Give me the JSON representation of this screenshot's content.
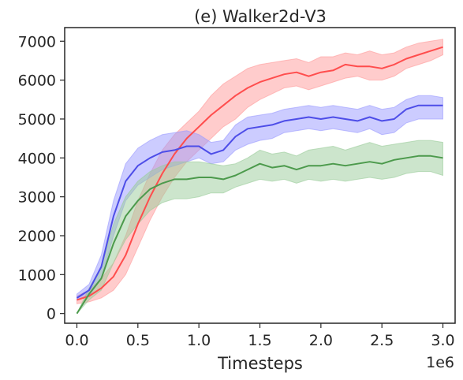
{
  "chart_data": {
    "type": "line",
    "title": "(e) Walker2d-V3",
    "xlabel": "Timesteps",
    "ylabel": "",
    "x_offset_label": "1e6",
    "xlim": [
      -0.1,
      3.1
    ],
    "ylim": [
      -250,
      7350
    ],
    "x_ticks": [
      0.0,
      0.5,
      1.0,
      1.5,
      2.0,
      2.5,
      3.0
    ],
    "x_tick_labels": [
      "0.0",
      "0.5",
      "1.0",
      "1.5",
      "2.0",
      "2.5",
      "3.0"
    ],
    "y_ticks": [
      0,
      1000,
      2000,
      3000,
      4000,
      5000,
      6000,
      7000
    ],
    "y_tick_labels": [
      "0",
      "1000",
      "2000",
      "3000",
      "4000",
      "5000",
      "6000",
      "7000"
    ],
    "grid": false,
    "series": [
      {
        "color": "#ff4d4d",
        "fill_color": "#ff9999",
        "x": [
          0.0,
          0.1,
          0.2,
          0.3,
          0.4,
          0.5,
          0.6,
          0.7,
          0.8,
          0.9,
          1.0,
          1.1,
          1.2,
          1.3,
          1.4,
          1.5,
          1.6,
          1.7,
          1.8,
          1.9,
          2.0,
          2.1,
          2.2,
          2.3,
          2.4,
          2.5,
          2.6,
          2.7,
          2.8,
          2.9,
          3.0
        ],
        "mean": [
          350,
          450,
          650,
          950,
          1500,
          2300,
          3000,
          3600,
          4100,
          4500,
          4800,
          5100,
          5350,
          5600,
          5800,
          5950,
          6050,
          6150,
          6200,
          6100,
          6200,
          6250,
          6400,
          6350,
          6350,
          6300,
          6400,
          6550,
          6650,
          6750,
          6850
        ],
        "lower": [
          250,
          300,
          400,
          600,
          1000,
          1700,
          2400,
          3000,
          3500,
          3900,
          4200,
          4500,
          4800,
          5000,
          5300,
          5500,
          5650,
          5800,
          5850,
          5750,
          5850,
          5950,
          6050,
          6100,
          6000,
          6000,
          6100,
          6300,
          6400,
          6500,
          6650
        ],
        "upper": [
          450,
          600,
          900,
          1300,
          2000,
          2900,
          3600,
          4200,
          4600,
          4900,
          5200,
          5600,
          5900,
          6100,
          6300,
          6400,
          6450,
          6500,
          6550,
          6450,
          6600,
          6600,
          6700,
          6650,
          6750,
          6650,
          6700,
          6850,
          6950,
          7000,
          7050
        ]
      },
      {
        "color": "#4d4de8",
        "fill_color": "#9999ff",
        "x": [
          0.0,
          0.1,
          0.2,
          0.3,
          0.4,
          0.5,
          0.6,
          0.7,
          0.8,
          0.9,
          1.0,
          1.1,
          1.2,
          1.3,
          1.4,
          1.5,
          1.6,
          1.7,
          1.8,
          1.9,
          2.0,
          2.1,
          2.2,
          2.3,
          2.4,
          2.5,
          2.6,
          2.7,
          2.8,
          2.9,
          3.0
        ],
        "mean": [
          400,
          600,
          1200,
          2500,
          3400,
          3800,
          4000,
          4150,
          4200,
          4300,
          4300,
          4100,
          4200,
          4550,
          4750,
          4800,
          4850,
          4950,
          5000,
          5050,
          5000,
          5050,
          5000,
          4950,
          5050,
          4950,
          5000,
          5250,
          5350,
          5350,
          5350
        ],
        "lower": [
          350,
          450,
          900,
          2000,
          2900,
          3300,
          3500,
          3700,
          3800,
          3900,
          4000,
          3850,
          3900,
          4200,
          4350,
          4450,
          4500,
          4650,
          4700,
          4750,
          4700,
          4750,
          4700,
          4650,
          4750,
          4600,
          4650,
          4900,
          5000,
          5000,
          5000
        ],
        "upper": [
          500,
          750,
          1500,
          2900,
          3850,
          4250,
          4450,
          4600,
          4650,
          4700,
          4600,
          4400,
          4450,
          4850,
          5050,
          5100,
          5150,
          5250,
          5300,
          5350,
          5300,
          5350,
          5300,
          5250,
          5350,
          5250,
          5300,
          5500,
          5600,
          5600,
          5550
        ]
      },
      {
        "color": "#4c9a4c",
        "fill_color": "#99cc99",
        "x": [
          0.0,
          0.1,
          0.2,
          0.3,
          0.4,
          0.5,
          0.6,
          0.7,
          0.8,
          0.9,
          1.0,
          1.1,
          1.2,
          1.3,
          1.4,
          1.5,
          1.6,
          1.7,
          1.8,
          1.9,
          2.0,
          2.1,
          2.2,
          2.3,
          2.4,
          2.5,
          2.6,
          2.7,
          2.8,
          2.9,
          3.0
        ],
        "mean": [
          0,
          500,
          900,
          1800,
          2500,
          2900,
          3200,
          3350,
          3450,
          3450,
          3500,
          3500,
          3450,
          3550,
          3700,
          3850,
          3750,
          3800,
          3700,
          3800,
          3800,
          3850,
          3800,
          3850,
          3900,
          3850,
          3950,
          4000,
          4050,
          4050,
          4000
        ],
        "lower": [
          0,
          350,
          600,
          1300,
          1900,
          2300,
          2650,
          2850,
          2950,
          2950,
          3000,
          3100,
          3100,
          3250,
          3350,
          3450,
          3400,
          3450,
          3350,
          3450,
          3400,
          3450,
          3400,
          3450,
          3500,
          3450,
          3500,
          3600,
          3650,
          3650,
          3550
        ],
        "upper": [
          0,
          650,
          1200,
          2300,
          3000,
          3400,
          3650,
          3800,
          3900,
          3900,
          3900,
          3850,
          3800,
          3850,
          4000,
          4200,
          4100,
          4150,
          4050,
          4200,
          4250,
          4300,
          4200,
          4300,
          4400,
          4300,
          4350,
          4400,
          4450,
          4450,
          4400
        ]
      }
    ]
  }
}
